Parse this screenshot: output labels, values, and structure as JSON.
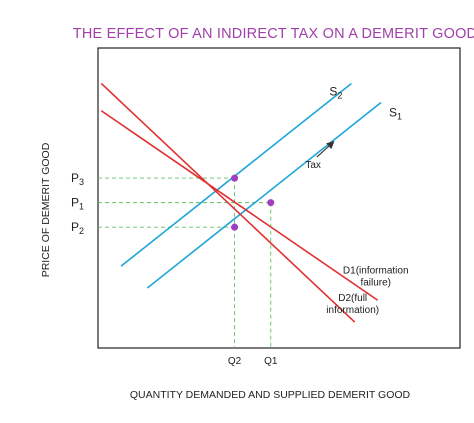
{
  "chart_data": {
    "type": "line",
    "title": "THE EFFECT OF AN INDIRECT TAX ON A DEMERIT GOOD",
    "xlabel": "QUANTITY DEMANDED AND SUPPLIED  DEMERIT GOOD",
    "ylabel": "PRICE OF DEMERIT GOOD",
    "grid": false,
    "colors": {
      "supply": "#1ea6d8",
      "demand": "#e03030",
      "point": "#a040c0",
      "guide": "#60c060"
    },
    "curves": [
      {
        "id": "s2",
        "label": "S",
        "sub": "2",
        "kind": "supply",
        "from": [
          0.7,
          3.0
        ],
        "to": [
          7.7,
          9.7
        ]
      },
      {
        "id": "s1",
        "label": "S",
        "sub": "1",
        "kind": "supply",
        "from": [
          1.5,
          2.2
        ],
        "to": [
          8.6,
          9.0
        ]
      },
      {
        "id": "d1",
        "label": "D1(information failure)",
        "label_lines": [
          "D1(information",
          "failure)"
        ],
        "kind": "demand",
        "from": [
          0.1,
          8.7
        ],
        "to": [
          8.5,
          1.75
        ]
      },
      {
        "id": "d2",
        "label": "D2(full information)",
        "label_lines": [
          "D2(full",
          "information)"
        ],
        "kind": "demand",
        "from": [
          0.1,
          9.7
        ],
        "to": [
          7.8,
          0.95
        ]
      }
    ],
    "points": [
      {
        "id": "p3q2",
        "x": 4.15,
        "y": 6.23
      },
      {
        "id": "p1q1",
        "x": 5.25,
        "y": 5.33
      },
      {
        "id": "p2q2",
        "x": 4.15,
        "y": 4.43
      }
    ],
    "y_ticks": [
      {
        "label": "P",
        "sub": "3",
        "y": 6.23
      },
      {
        "label": "P",
        "sub": "1",
        "y": 5.33
      },
      {
        "label": "P",
        "sub": "2",
        "y": 4.43
      }
    ],
    "x_ticks": [
      {
        "label": "Q2",
        "x": 4.15
      },
      {
        "label": "Q1",
        "x": 5.25
      }
    ],
    "annotation": {
      "text": "Tax",
      "at": [
        6.3,
        6.6
      ],
      "arrow_from": [
        6.65,
        7.0
      ],
      "arrow_to": [
        7.15,
        7.55
      ]
    },
    "xlim": [
      0,
      11
    ],
    "ylim": [
      0,
      11
    ]
  }
}
